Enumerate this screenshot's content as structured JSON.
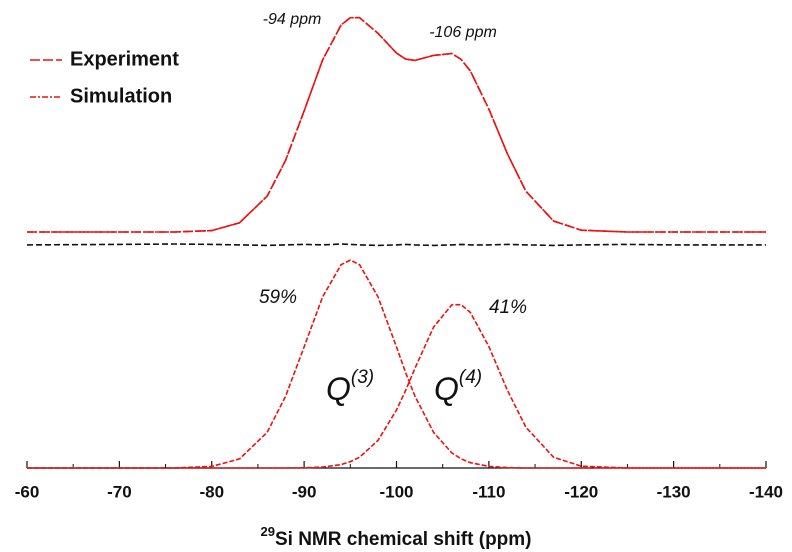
{
  "chart_data": {
    "type": "line",
    "xlabel_sup": "29",
    "xlabel": "Si NMR chemical shift (ppm)",
    "x": [
      -60,
      -70,
      -76,
      -80,
      -83,
      -86,
      -88,
      -90,
      -92,
      -94,
      -95,
      -96,
      -98,
      -100,
      -101,
      -102,
      -104,
      -106,
      -107,
      -108,
      -110,
      -112,
      -114,
      -117,
      -120,
      -125,
      -130,
      -140
    ],
    "series": [
      {
        "name": "Experiment",
        "color": "#ee1111",
        "dash": "10 3",
        "legend": true,
        "values": [
          51.3,
          51.3,
          51.3,
          51.6,
          53.3,
          59.1,
          66.9,
          77.6,
          88.7,
          96.3,
          97.9,
          97.9,
          94.5,
          90.2,
          88.9,
          88.6,
          89.7,
          90.1,
          88.8,
          86.3,
          78.0,
          68.3,
          60.2,
          53.7,
          51.7,
          51.3,
          51.3,
          51.3
        ]
      },
      {
        "name": "Simulation",
        "color": "#ee1111",
        "dash": "6 2 2 2",
        "legend": true,
        "values": [
          51.3,
          51.3,
          51.3,
          51.6,
          53.3,
          59.1,
          66.9,
          77.6,
          88.7,
          96.3,
          97.9,
          97.9,
          94.5,
          90.2,
          88.9,
          88.6,
          89.7,
          90.1,
          88.8,
          86.3,
          78.0,
          68.3,
          60.2,
          53.7,
          51.7,
          51.3,
          51.3,
          51.3
        ]
      },
      {
        "color": "#111111",
        "dash": "6 3",
        "legend": false,
        "values": [
          48.5,
          48.6,
          48.7,
          48.6,
          48.5,
          48.4,
          48.5,
          48.6,
          48.5,
          48.7,
          48.6,
          48.5,
          48.4,
          48.5,
          48.6,
          48.5,
          48.4,
          48.5,
          48.6,
          48.5,
          48.5,
          48.6,
          48.5,
          48.4,
          48.5,
          48.6,
          48.5,
          48.5
        ]
      },
      {
        "color": "#ee1111",
        "dash": "5 2",
        "legend": false,
        "values": [
          0,
          0,
          0,
          0.34,
          1.98,
          7.77,
          15.6,
          26.3,
          37.2,
          44.2,
          45.2,
          44.2,
          37.2,
          26.3,
          20.7,
          15.6,
          7.77,
          3.26,
          1.98,
          1.15,
          0.34,
          0.08,
          0,
          0,
          0,
          0,
          0,
          0
        ]
      },
      {
        "color": "#ee1111",
        "dash": "5 2",
        "legend": false,
        "values": [
          0,
          0,
          0,
          0,
          0,
          0,
          0,
          0.04,
          0.2,
          0.75,
          1.36,
          2.35,
          6.0,
          12.6,
          16.9,
          21.7,
          30.6,
          35.5,
          35.5,
          33.8,
          26.4,
          16.9,
          8.9,
          2.35,
          0.4,
          0,
          0,
          0
        ]
      }
    ],
    "xlim": [
      -60,
      -140
    ],
    "ylim": [
      0,
      100
    ],
    "xticks": [
      -60,
      -70,
      -80,
      -90,
      -100,
      -110,
      -120,
      -130,
      -140
    ],
    "xminorticks": [
      -65,
      -75,
      -85,
      -95,
      -105,
      -115,
      -125,
      -135
    ],
    "annotations": [
      "-94 ppm",
      "-106 ppm",
      "59%",
      "41%"
    ],
    "components": [
      {
        "main": "Q",
        "sup": "(3)"
      },
      {
        "main": "Q",
        "sup": "(4)"
      }
    ]
  }
}
